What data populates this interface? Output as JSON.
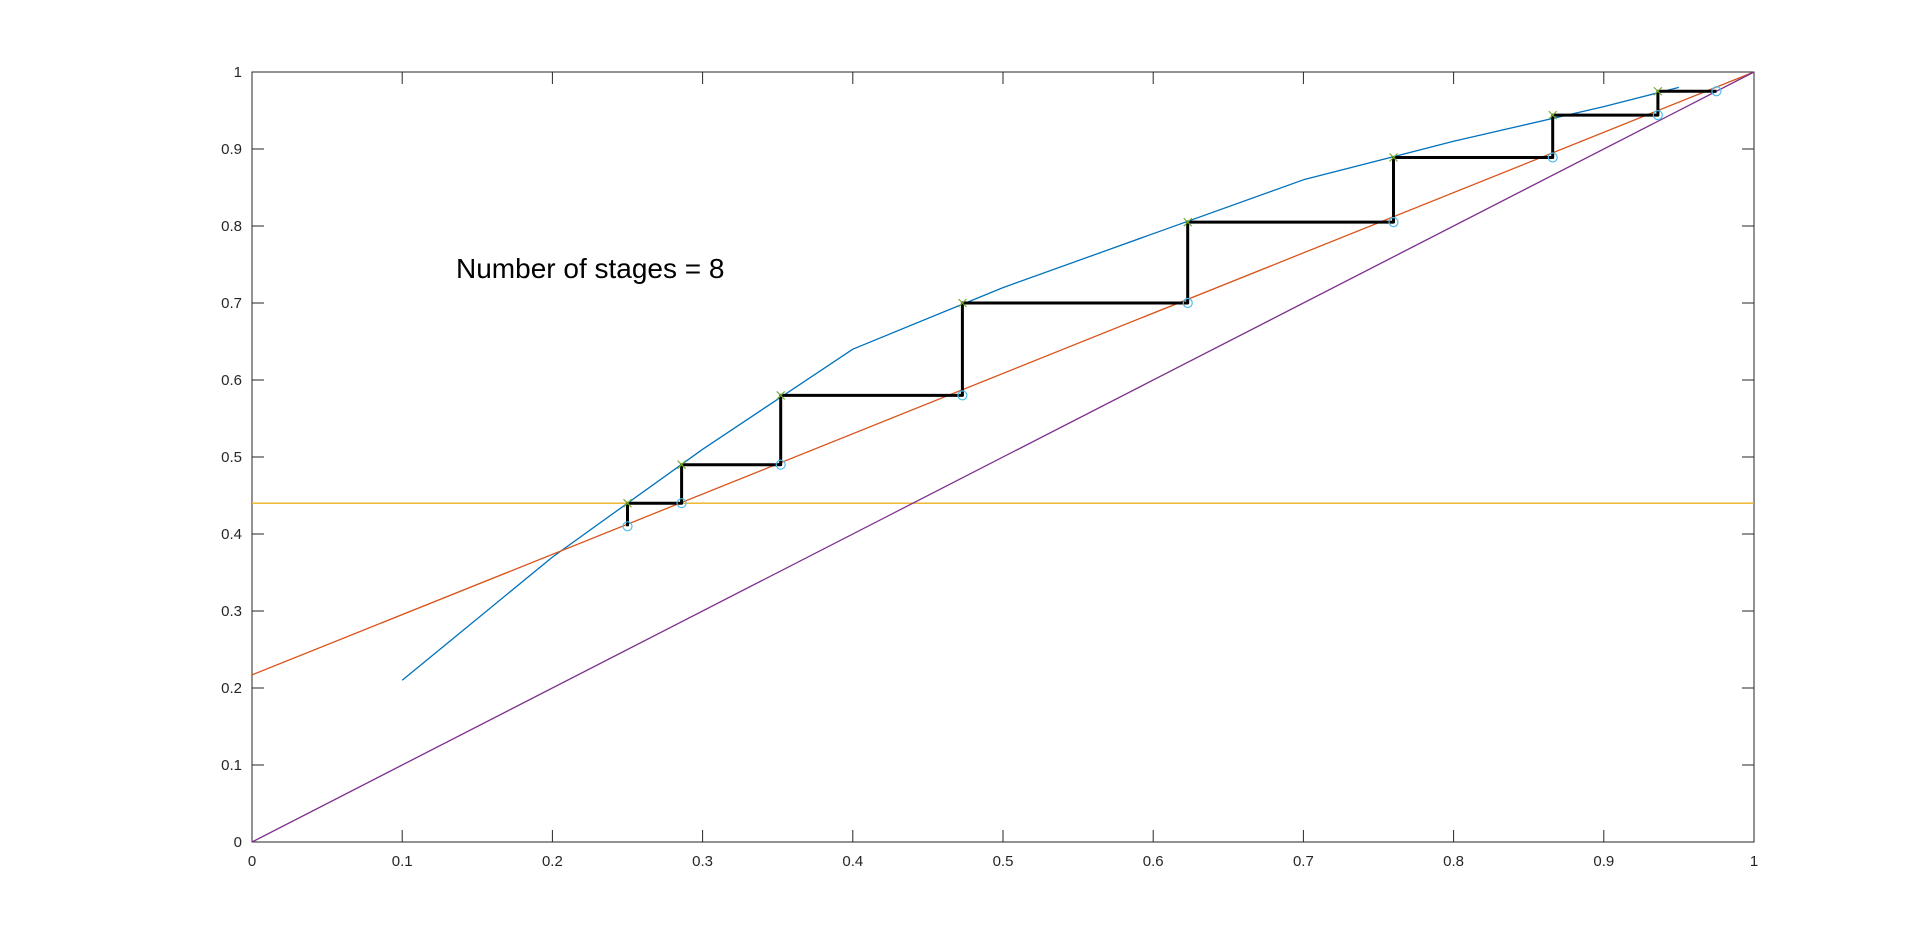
{
  "chart_data": {
    "type": "line",
    "title": "",
    "xlabel": "",
    "ylabel": "",
    "xlim": [
      0,
      1
    ],
    "ylim": [
      0,
      1
    ],
    "grid": false,
    "legend": "none",
    "annotation": "Number of stages = 8",
    "x_ticks": [
      "0",
      "0.1",
      "0.2",
      "0.3",
      "0.4",
      "0.5",
      "0.6",
      "0.7",
      "0.8",
      "0.9",
      "1"
    ],
    "y_ticks": [
      "0",
      "0.1",
      "0.2",
      "0.3",
      "0.4",
      "0.5",
      "0.6",
      "0.7",
      "0.8",
      "0.9",
      "1"
    ],
    "series": [
      {
        "color": "#0072BD",
        "style": "line",
        "x": [
          0.1,
          0.2,
          0.3,
          0.4,
          0.5,
          0.6,
          0.7,
          0.8,
          0.9,
          0.95
        ],
        "y": [
          0.21,
          0.37,
          0.51,
          0.64,
          0.72,
          0.79,
          0.86,
          0.91,
          0.955,
          0.98
        ]
      },
      {
        "color": "#D95319",
        "style": "line",
        "x": [
          0,
          1
        ],
        "y": [
          0.217,
          1
        ]
      },
      {
        "color": "#EDB120",
        "style": "line",
        "x": [
          0,
          1
        ],
        "y": [
          0.44,
          0.44
        ]
      },
      {
        "color": "#7E2F8E",
        "style": "line",
        "x": [
          0,
          1
        ],
        "y": [
          0,
          1
        ]
      },
      {
        "color": "#000000",
        "style": "stairs",
        "x": [
          0.25,
          0.25,
          0.286,
          0.286,
          0.352,
          0.352,
          0.473,
          0.473,
          0.623,
          0.623,
          0.76,
          0.76,
          0.866,
          0.866,
          0.936,
          0.936,
          0.975
        ],
        "y": [
          0.41,
          0.44,
          0.44,
          0.49,
          0.49,
          0.58,
          0.58,
          0.7,
          0.7,
          0.805,
          0.805,
          0.889,
          0.889,
          0.944,
          0.944,
          0.975,
          0.975
        ]
      },
      {
        "color": "#4DBEEE",
        "style": "markers-circle",
        "x": [
          0.25,
          0.286,
          0.352,
          0.473,
          0.623,
          0.76,
          0.866,
          0.936,
          0.975
        ],
        "y": [
          0.41,
          0.44,
          0.49,
          0.58,
          0.7,
          0.805,
          0.889,
          0.944,
          0.975
        ]
      },
      {
        "color": "#77AC30",
        "style": "markers-x",
        "x": [
          0.25,
          0.286,
          0.352,
          0.473,
          0.623,
          0.76,
          0.866,
          0.936
        ],
        "y": [
          0.44,
          0.49,
          0.58,
          0.7,
          0.805,
          0.889,
          0.944,
          0.975
        ]
      }
    ]
  }
}
